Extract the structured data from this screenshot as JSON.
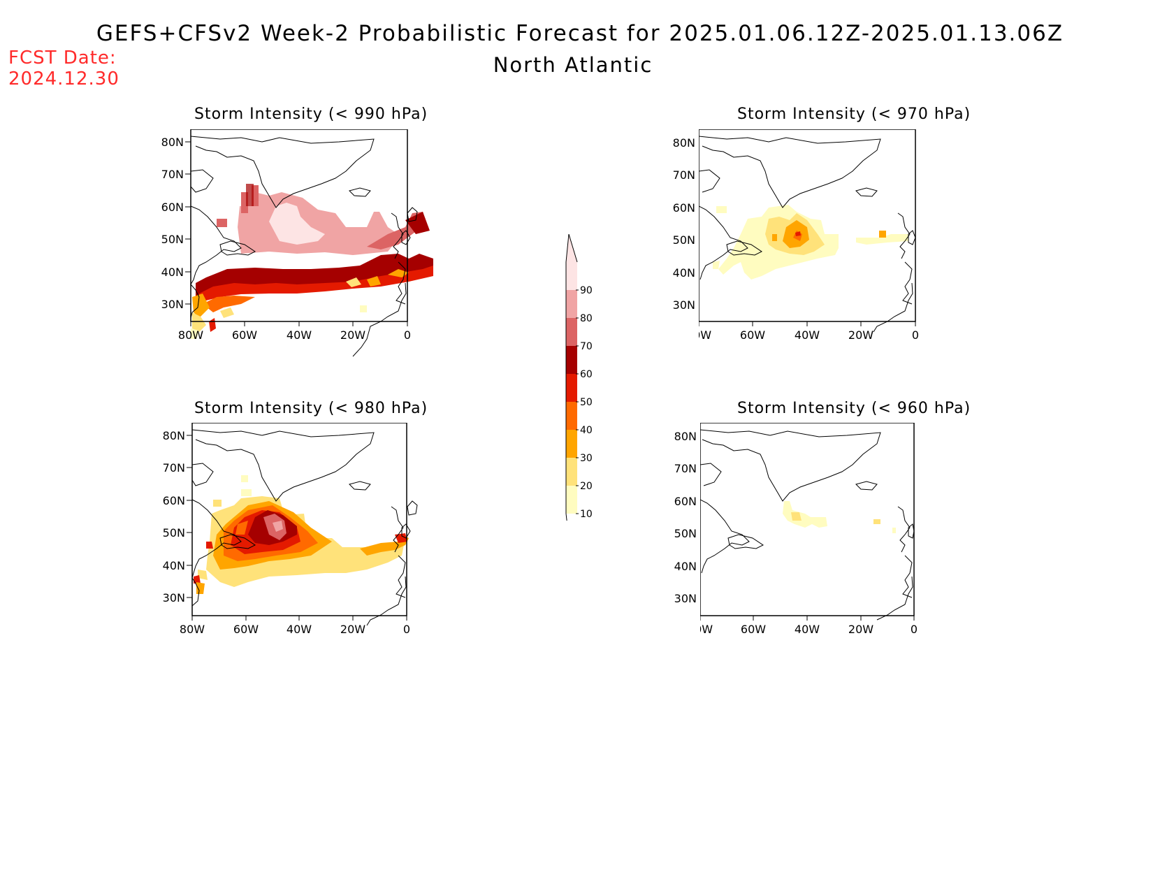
{
  "header": {
    "title": "GEFS+CFSv2 Week-2 Probabilistic Forecast for 2025.01.06.12Z-2025.01.13.06Z",
    "subtitle": "North Atlantic",
    "fcst_label": "FCST Date:",
    "fcst_date": "2024.12.30"
  },
  "panels": [
    {
      "id": "p990",
      "title": "Storm Intensity (< 990 hPa)"
    },
    {
      "id": "p970",
      "title": "Storm Intensity (< 970 hPa)"
    },
    {
      "id": "p980",
      "title": "Storm Intensity (< 980 hPa)"
    },
    {
      "id": "p960",
      "title": "Storm Intensity (< 960 hPa)"
    }
  ],
  "axes": {
    "lat_labels": [
      "80N",
      "70N",
      "60N",
      "50N",
      "40N",
      "30N"
    ],
    "lon_labels": [
      "80W",
      "60W",
      "40W",
      "20W",
      "0"
    ]
  },
  "colorbar": {
    "levels": [
      "10",
      "20",
      "30",
      "40",
      "50",
      "60",
      "70",
      "80",
      "90"
    ],
    "colors": [
      "#fffcc0",
      "#ffe27a",
      "#ffa500",
      "#ff6a00",
      "#e41a00",
      "#a50000",
      "#dc6464",
      "#f0a4a4",
      "#fde4e4"
    ]
  }
}
